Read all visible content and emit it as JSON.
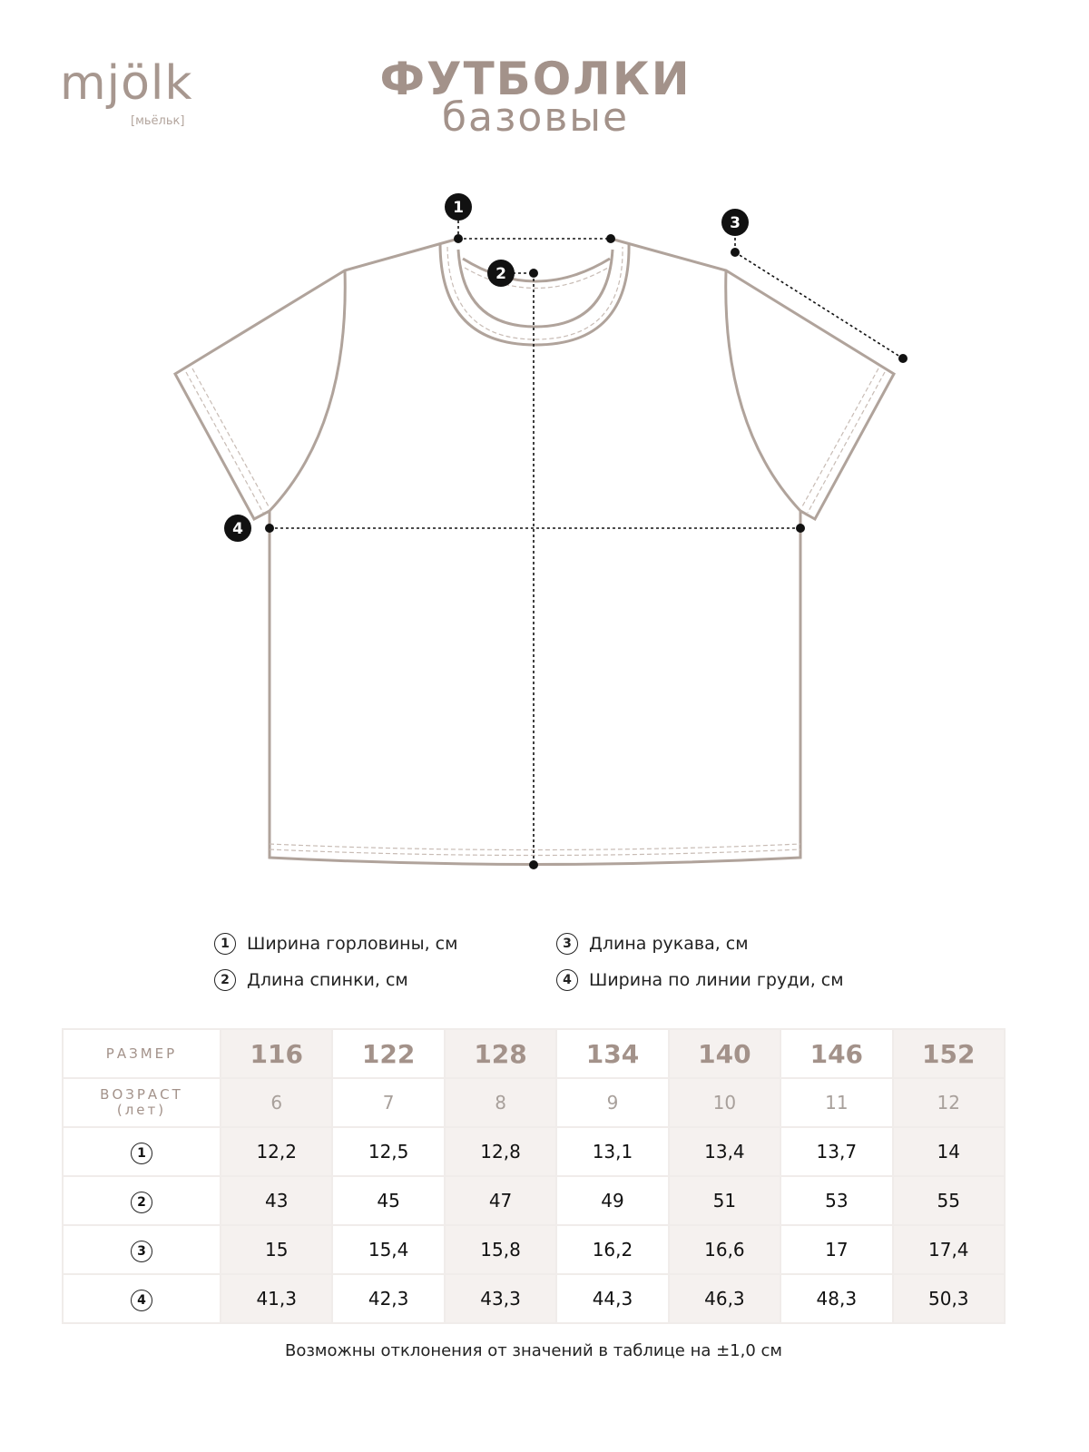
{
  "brand": {
    "logo": "mjölk",
    "logo_sub": "[мьёльк]",
    "color": "#a3928a"
  },
  "title": {
    "main": "ФУТБОЛКИ",
    "sub": "базовые"
  },
  "markers": [
    "1",
    "2",
    "3",
    "4"
  ],
  "legend": [
    {
      "n": "1",
      "label": "Ширина горловины, см"
    },
    {
      "n": "2",
      "label": "Длина спинки, см"
    },
    {
      "n": "3",
      "label": "Длина рукава, см"
    },
    {
      "n": "4",
      "label": "Ширина по линии груди, см"
    }
  ],
  "table": {
    "size_label": "РАЗМЕР",
    "age_label": "ВОЗРАСТ",
    "age_unit": "(лет)",
    "sizes": [
      "116",
      "122",
      "128",
      "134",
      "140",
      "146",
      "152"
    ],
    "ages": [
      "6",
      "7",
      "8",
      "9",
      "10",
      "11",
      "12"
    ],
    "rows": [
      {
        "n": "1",
        "values": [
          "12,2",
          "12,5",
          "12,8",
          "13,1",
          "13,4",
          "13,7",
          "14"
        ]
      },
      {
        "n": "2",
        "values": [
          "43",
          "45",
          "47",
          "49",
          "51",
          "53",
          "55"
        ]
      },
      {
        "n": "3",
        "values": [
          "15",
          "15,4",
          "15,8",
          "16,2",
          "16,6",
          "17",
          "17,4"
        ]
      },
      {
        "n": "4",
        "values": [
          "41,3",
          "42,3",
          "43,3",
          "44,3",
          "46,3",
          "48,3",
          "50,3"
        ]
      }
    ]
  },
  "note": "Возможны отклонения от значений в таблице на ±1,0 см"
}
